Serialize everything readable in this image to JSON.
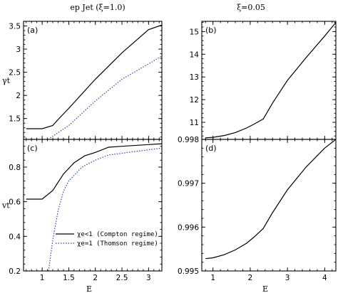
{
  "titles": {
    "left": "ep Jet (ξ=1.0)",
    "right": "ξ=0.05"
  },
  "chart_data": [
    {
      "type": "line",
      "panel": "a",
      "panel_label": "(a)",
      "xlabel": "",
      "ylabel": "γt",
      "xlim": [
        0.65,
        3.25
      ],
      "ylim": [
        1.05,
        3.6
      ],
      "xticks": [
        1,
        1.5,
        2,
        2.5,
        3
      ],
      "yticks": [
        1.5,
        2,
        2.5,
        3,
        3.5
      ],
      "yticklabels": [
        "1.5",
        "2",
        "2.5",
        "3",
        "3.5"
      ],
      "series": [
        {
          "style": "solid",
          "color": "#000000",
          "x": [
            0.7,
            1.0,
            1.2,
            1.3,
            1.5,
            2.0,
            2.5,
            3.0,
            3.25
          ],
          "y": [
            1.28,
            1.28,
            1.35,
            1.48,
            1.72,
            2.35,
            2.92,
            3.42,
            3.52
          ]
        },
        {
          "style": "dotted",
          "color": "#2244cc",
          "x": [
            1.15,
            1.5,
            2.0,
            2.5,
            3.0,
            3.25
          ],
          "y": [
            1.08,
            1.35,
            1.88,
            2.35,
            2.68,
            2.85
          ]
        }
      ]
    },
    {
      "type": "line",
      "panel": "b",
      "panel_label": "(b)",
      "xlabel": "",
      "ylabel": "",
      "xlim": [
        0.7,
        4.3
      ],
      "ylim": [
        10.25,
        15.45
      ],
      "xticks": [
        1,
        2,
        3,
        4
      ],
      "yticks": [
        11,
        12,
        13,
        14,
        15
      ],
      "yticklabels": [
        "11",
        "12",
        "13",
        "14",
        "15"
      ],
      "series": [
        {
          "style": "solid",
          "color": "#000000",
          "x": [
            0.8,
            1.0,
            1.3,
            1.6,
            1.9,
            2.1,
            2.35,
            2.6,
            3.0,
            3.5,
            4.0,
            4.3
          ],
          "y": [
            10.32,
            10.34,
            10.42,
            10.55,
            10.75,
            10.92,
            11.15,
            11.85,
            12.85,
            13.85,
            14.8,
            15.4
          ]
        }
      ]
    },
    {
      "type": "line",
      "panel": "c",
      "panel_label": "(c)",
      "xlabel": "E",
      "ylabel": "vt",
      "xlim": [
        0.65,
        3.25
      ],
      "ylim": [
        0.2,
        0.96
      ],
      "xticks": [
        1,
        1.5,
        2,
        2.5,
        3
      ],
      "yticks": [
        0.2,
        0.4,
        0.6,
        0.8
      ],
      "yticklabels": [
        "0.2",
        "0.4",
        "0.6",
        "0.8"
      ],
      "xticklabels": [
        "1",
        "1.5",
        "2",
        "2.5",
        "3"
      ],
      "series": [
        {
          "name": "χe<1 (Compton regime)",
          "style": "solid",
          "color": "#000000",
          "x": [
            0.7,
            1.0,
            1.2,
            1.4,
            1.6,
            1.8,
            2.0,
            2.25,
            2.5,
            3.0,
            3.25
          ],
          "y": [
            0.615,
            0.615,
            0.665,
            0.76,
            0.825,
            0.865,
            0.885,
            0.915,
            0.92,
            0.93,
            0.935
          ]
        },
        {
          "name": "χe=1 (Thomson regime)",
          "style": "dotted",
          "color": "#2244cc",
          "x": [
            1.12,
            1.2,
            1.3,
            1.4,
            1.5,
            1.75,
            2.0,
            2.25,
            2.5,
            3.0,
            3.25
          ],
          "y": [
            0.2,
            0.38,
            0.55,
            0.66,
            0.72,
            0.8,
            0.84,
            0.87,
            0.88,
            0.9,
            0.91
          ]
        }
      ]
    },
    {
      "type": "line",
      "panel": "d",
      "panel_label": "(d)",
      "xlabel": "E",
      "ylabel": "",
      "xlim": [
        0.7,
        4.3
      ],
      "ylim": [
        0.995,
        0.998
      ],
      "xticks": [
        1,
        2,
        3,
        4
      ],
      "yticks": [
        0.995,
        0.996,
        0.997,
        0.998
      ],
      "yticklabels": [
        "0.995",
        "0.996",
        "0.997",
        "0.998"
      ],
      "xticklabels": [
        "1",
        "2",
        "3",
        "4"
      ],
      "series": [
        {
          "style": "solid",
          "color": "#000000",
          "x": [
            0.8,
            1.0,
            1.3,
            1.6,
            1.9,
            2.1,
            2.35,
            2.6,
            3.0,
            3.5,
            4.0,
            4.3
          ],
          "y": [
            0.99528,
            0.9953,
            0.99537,
            0.99548,
            0.99563,
            0.99577,
            0.99597,
            0.99633,
            0.99685,
            0.99737,
            0.9978,
            0.998
          ]
        }
      ]
    }
  ]
}
